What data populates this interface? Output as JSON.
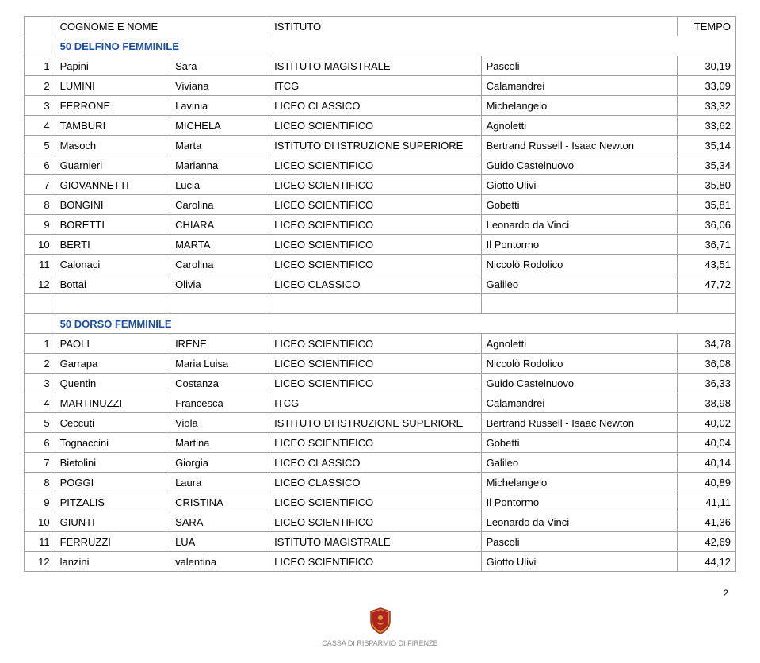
{
  "header": {
    "col1": "COGNOME E NOME",
    "col2": "ISTITUTO",
    "col3": "TEMPO"
  },
  "sections": [
    {
      "title": "50 DELFINO FEMMINILE",
      "rows": [
        {
          "n": "1",
          "surname": "Papini",
          "name": "Sara",
          "institute": "ISTITUTO MAGISTRALE",
          "location": "Pascoli",
          "time": "30,19"
        },
        {
          "n": "2",
          "surname": "LUMINI",
          "name": "Viviana",
          "institute": "ITCG",
          "location": "Calamandrei",
          "time": "33,09"
        },
        {
          "n": "3",
          "surname": "FERRONE",
          "name": "Lavinia",
          "institute": "LICEO CLASSICO",
          "location": "Michelangelo",
          "time": "33,32"
        },
        {
          "n": "4",
          "surname": "TAMBURI",
          "name": "MICHELA",
          "institute": "LICEO SCIENTIFICO",
          "location": "Agnoletti",
          "time": "33,62"
        },
        {
          "n": "5",
          "surname": "Masoch",
          "name": "Marta",
          "institute": "ISTITUTO DI ISTRUZIONE SUPERIORE",
          "location": "Bertrand Russell - Isaac Newton",
          "time": "35,14"
        },
        {
          "n": "6",
          "surname": "Guarnieri",
          "name": "Marianna",
          "institute": "LICEO SCIENTIFICO",
          "location": "Guido Castelnuovo",
          "time": "35,34"
        },
        {
          "n": "7",
          "surname": "GIOVANNETTI",
          "name": "Lucia",
          "institute": "LICEO SCIENTIFICO",
          "location": "Giotto Ulivi",
          "time": "35,80"
        },
        {
          "n": "8",
          "surname": "BONGINI",
          "name": "Carolina",
          "institute": "LICEO SCIENTIFICO",
          "location": "Gobetti",
          "time": "35,81"
        },
        {
          "n": "9",
          "surname": "BORETTI",
          "name": "CHIARA",
          "institute": "LICEO SCIENTIFICO",
          "location": "Leonardo da Vinci",
          "time": "36,06"
        },
        {
          "n": "10",
          "surname": "BERTI",
          "name": "MARTA",
          "institute": "LICEO SCIENTIFICO",
          "location": "Il Pontormo",
          "time": "36,71"
        },
        {
          "n": "11",
          "surname": "Calonaci",
          "name": "Carolina",
          "institute": "LICEO SCIENTIFICO",
          "location": "Niccolò Rodolico",
          "time": "43,51"
        },
        {
          "n": "12",
          "surname": "Bottai",
          "name": "Olivia",
          "institute": "LICEO CLASSICO",
          "location": "Galileo",
          "time": "47,72"
        }
      ]
    },
    {
      "title": "50 DORSO FEMMINILE",
      "rows": [
        {
          "n": "1",
          "surname": "PAOLI",
          "name": "IRENE",
          "institute": "LICEO SCIENTIFICO",
          "location": "Agnoletti",
          "time": "34,78"
        },
        {
          "n": "2",
          "surname": "Garrapa",
          "name": "Maria Luisa",
          "institute": "LICEO SCIENTIFICO",
          "location": "Niccolò Rodolico",
          "time": "36,08"
        },
        {
          "n": "3",
          "surname": "Quentin",
          "name": "Costanza",
          "institute": "LICEO SCIENTIFICO",
          "location": "Guido Castelnuovo",
          "time": "36,33"
        },
        {
          "n": "4",
          "surname": "MARTINUZZI",
          "name": "Francesca",
          "institute": "ITCG",
          "location": "Calamandrei",
          "time": "38,98"
        },
        {
          "n": "5",
          "surname": "Ceccuti",
          "name": "Viola",
          "institute": "ISTITUTO DI ISTRUZIONE SUPERIORE",
          "location": "Bertrand Russell - Isaac Newton",
          "time": "40,02"
        },
        {
          "n": "6",
          "surname": "Tognaccini",
          "name": "Martina",
          "institute": "LICEO SCIENTIFICO",
          "location": "Gobetti",
          "time": "40,04"
        },
        {
          "n": "7",
          "surname": "Bietolini",
          "name": "Giorgia",
          "institute": "LICEO CLASSICO",
          "location": "Galileo",
          "time": "40,14"
        },
        {
          "n": "8",
          "surname": "POGGI",
          "name": "Laura",
          "institute": "LICEO CLASSICO",
          "location": "Michelangelo",
          "time": "40,89"
        },
        {
          "n": "9",
          "surname": "PITZALIS",
          "name": "CRISTINA",
          "institute": "LICEO SCIENTIFICO",
          "location": "Il Pontormo",
          "time": "41,11"
        },
        {
          "n": "10",
          "surname": "GIUNTI",
          "name": "SARA",
          "institute": "LICEO SCIENTIFICO",
          "location": "Leonardo da Vinci",
          "time": "41,36"
        },
        {
          "n": "11",
          "surname": "FERRUZZI",
          "name": "LUA",
          "institute": "ISTITUTO MAGISTRALE",
          "location": "Pascoli",
          "time": "42,69"
        },
        {
          "n": "12",
          "surname": "lanzini",
          "name": "valentina",
          "institute": "LICEO SCIENTIFICO",
          "location": "Giotto Ulivi",
          "time": "44,12"
        }
      ]
    }
  ],
  "page_number": "2",
  "footer_text": "CASSA DI RISPARMIO DI FIRENZE",
  "colors": {
    "section_title": "#1a4ea3",
    "border": "#a0a0a0",
    "logo_shield": "#b22222",
    "logo_gold": "#c9a227"
  }
}
